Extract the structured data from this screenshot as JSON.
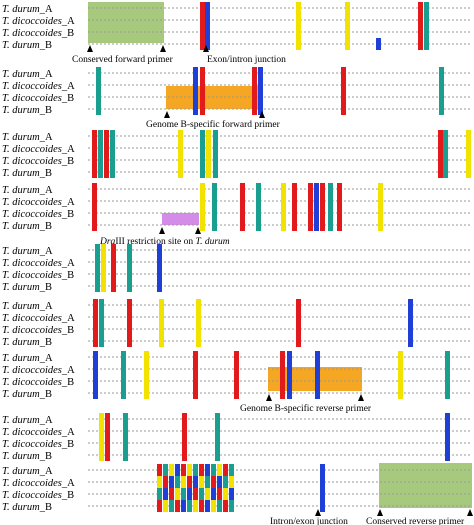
{
  "title": "",
  "sequence_labels": [
    {
      "genus": "T. durum",
      "suffix": "_A"
    },
    {
      "genus": "T. dicoccoides",
      "suffix": "_A"
    },
    {
      "genus": "T. dicoccoides",
      "suffix": "_B"
    },
    {
      "genus": "T. durum",
      "suffix": "_B"
    }
  ],
  "annotations": {
    "conserved_forward_primer": "Conserved forward primer",
    "exon_intron_junction": "Exon/intron junction",
    "genome_b_forward_primer": "Genome B-specific forward primer",
    "dra_italic": "Dra",
    "dra_rest": "III restriction site on",
    "dra_species": "T. durum",
    "genome_b_reverse_primer": "Genome B-specific reverse primer",
    "intron_exon_junction": "Intron/exon junction",
    "conserved_reverse_primer": "Conserved reverse primer"
  },
  "colors": {
    "A": "#e31a1c",
    "C": "#1f3fd6",
    "G": "#f2e200",
    "T": "#1a9e8f",
    "conserved_primer_box": "#a7c97e",
    "genome_b_primer_box": "#f5a623",
    "restriction_site_box": "#d58be8",
    "dotted_line": "#9a9a9a"
  }
}
